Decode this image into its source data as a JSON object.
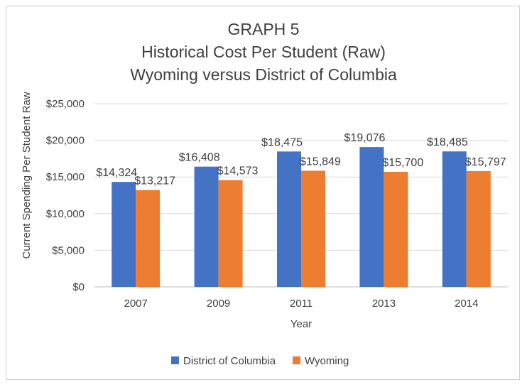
{
  "chart_data": {
    "type": "bar",
    "title_lines": [
      "GRAPH 5",
      "Historical Cost Per Student (Raw)",
      "Wyoming versus District of Columbia"
    ],
    "xlabel": "Year",
    "ylabel": "Current Spending Per Student Raw",
    "categories": [
      "2007",
      "2009",
      "2011",
      "2013",
      "2014"
    ],
    "ylim": [
      0,
      25000
    ],
    "yticks": [
      0,
      5000,
      10000,
      15000,
      20000,
      25000
    ],
    "ytick_labels": [
      "$0",
      "$5,000",
      "$10,000",
      "$15,000",
      "$20,000",
      "$25,000"
    ],
    "grid": true,
    "legend_position": "bottom",
    "series": [
      {
        "name": "District of Columbia",
        "color": "#4472c4",
        "values": [
          14324,
          16408,
          18475,
          19076,
          18485
        ],
        "labels": [
          "$14,324",
          "$16,408",
          "$18,475",
          "$19,076",
          "$18,485"
        ]
      },
      {
        "name": "Wyoming",
        "color": "#ed7d31",
        "values": [
          13217,
          14573,
          15849,
          15700,
          15797
        ],
        "labels": [
          "$13,217",
          "$14,573",
          "$15,849",
          "$15,700",
          "$15,797"
        ]
      }
    ]
  }
}
